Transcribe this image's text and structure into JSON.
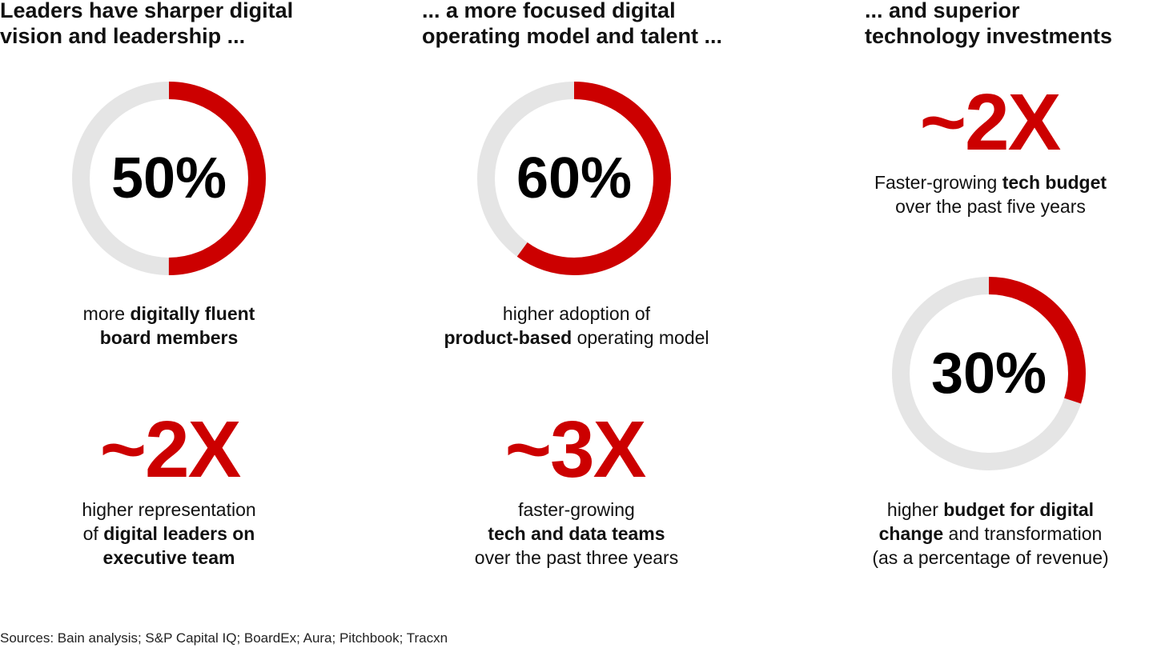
{
  "colors": {
    "accent": "#cc0000",
    "track": "#e5e5e5",
    "text": "#111111"
  },
  "columns": [
    {
      "heading_lines": [
        "Leaders have sharper digital",
        "vision and leadership ..."
      ]
    },
    {
      "heading_lines": [
        "... a more focused digital",
        "operating model and talent ..."
      ]
    },
    {
      "heading_lines": [
        "... and superior",
        "technology investments"
      ]
    }
  ],
  "chart_data": [
    {
      "type": "pie",
      "variant": "donut",
      "label": "50%",
      "value": 50,
      "max": 100
    },
    {
      "type": "pie",
      "variant": "donut",
      "label": "60%",
      "value": 60,
      "max": 100
    },
    {
      "type": "pie",
      "variant": "donut",
      "label": "30%",
      "value": 30,
      "max": 100
    }
  ],
  "stats": {
    "c1_donut_caption": [
      [
        "more ",
        ""
      ],
      [
        "digitally fluent",
        "b"
      ],
      [
        "board members",
        "b"
      ]
    ],
    "c1_big": "~2X",
    "c1_big_caption": [
      [
        "higher representation",
        ""
      ],
      [
        "of ",
        ""
      ],
      [
        "digital leaders on",
        "b"
      ],
      [
        "executive team",
        "b"
      ]
    ],
    "c2_donut_caption": [
      [
        "higher adoption of",
        ""
      ],
      [
        "product-based",
        "b"
      ],
      [
        " operating model",
        ""
      ]
    ],
    "c2_big": "~3X",
    "c2_big_caption": [
      [
        "faster-growing",
        ""
      ],
      [
        "tech and data teams",
        "b"
      ],
      [
        "over the past three years",
        ""
      ]
    ],
    "c3_big": "~2X",
    "c3_big_caption": [
      [
        "Faster-growing ",
        ""
      ],
      [
        "tech budget",
        "b"
      ],
      [
        "over the past five years",
        ""
      ]
    ],
    "c3_donut_caption": [
      [
        "higher ",
        ""
      ],
      [
        "budget for digital",
        "b"
      ],
      [
        "change",
        "b"
      ],
      [
        " and transformation",
        ""
      ],
      [
        "(as a percentage of revenue)",
        ""
      ]
    ]
  },
  "source": "Sources: Bain analysis; S&P Capital IQ; BoardEx; Aura; Pitchbook; Tracxn"
}
